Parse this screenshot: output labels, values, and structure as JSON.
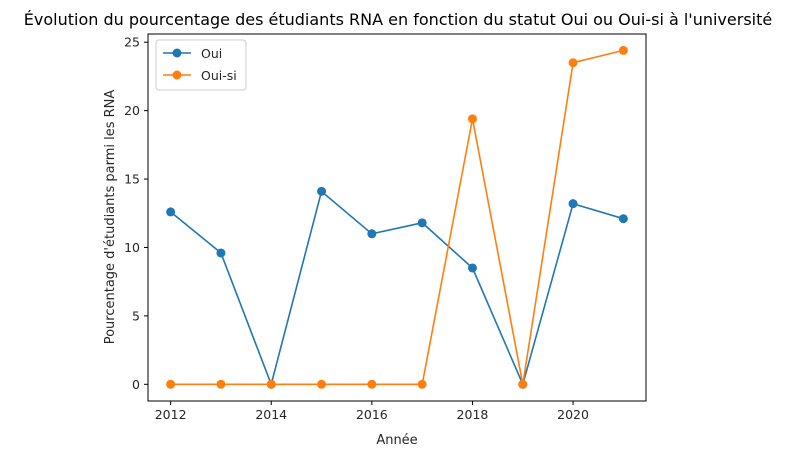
{
  "chart_data": {
    "type": "line",
    "title": "Évolution du pourcentage des étudiants RNA en fonction du statut Oui ou Oui-si à l'université",
    "xlabel": "Année",
    "ylabel": "Pourcentage d'étudiants parmi les RNA",
    "x": [
      2012,
      2013,
      2014,
      2015,
      2016,
      2017,
      2018,
      2019,
      2020,
      2021
    ],
    "xlim": [
      2011.55,
      2021.45
    ],
    "ylim": [
      -1.22,
      25.6
    ],
    "xticks": [
      2012,
      2014,
      2016,
      2018,
      2020
    ],
    "yticks": [
      0,
      5,
      10,
      15,
      20,
      25
    ],
    "grid": false,
    "legend_position": "top-left",
    "series": [
      {
        "name": "Oui",
        "color": "#1f77b4",
        "values": [
          12.6,
          9.6,
          0.0,
          14.1,
          11.0,
          11.8,
          8.5,
          0.0,
          13.2,
          12.1
        ]
      },
      {
        "name": "Oui-si",
        "color": "#ff7f0e",
        "values": [
          0.0,
          0.0,
          0.0,
          0.0,
          0.0,
          0.0,
          19.4,
          0.0,
          23.5,
          24.4
        ]
      }
    ]
  }
}
